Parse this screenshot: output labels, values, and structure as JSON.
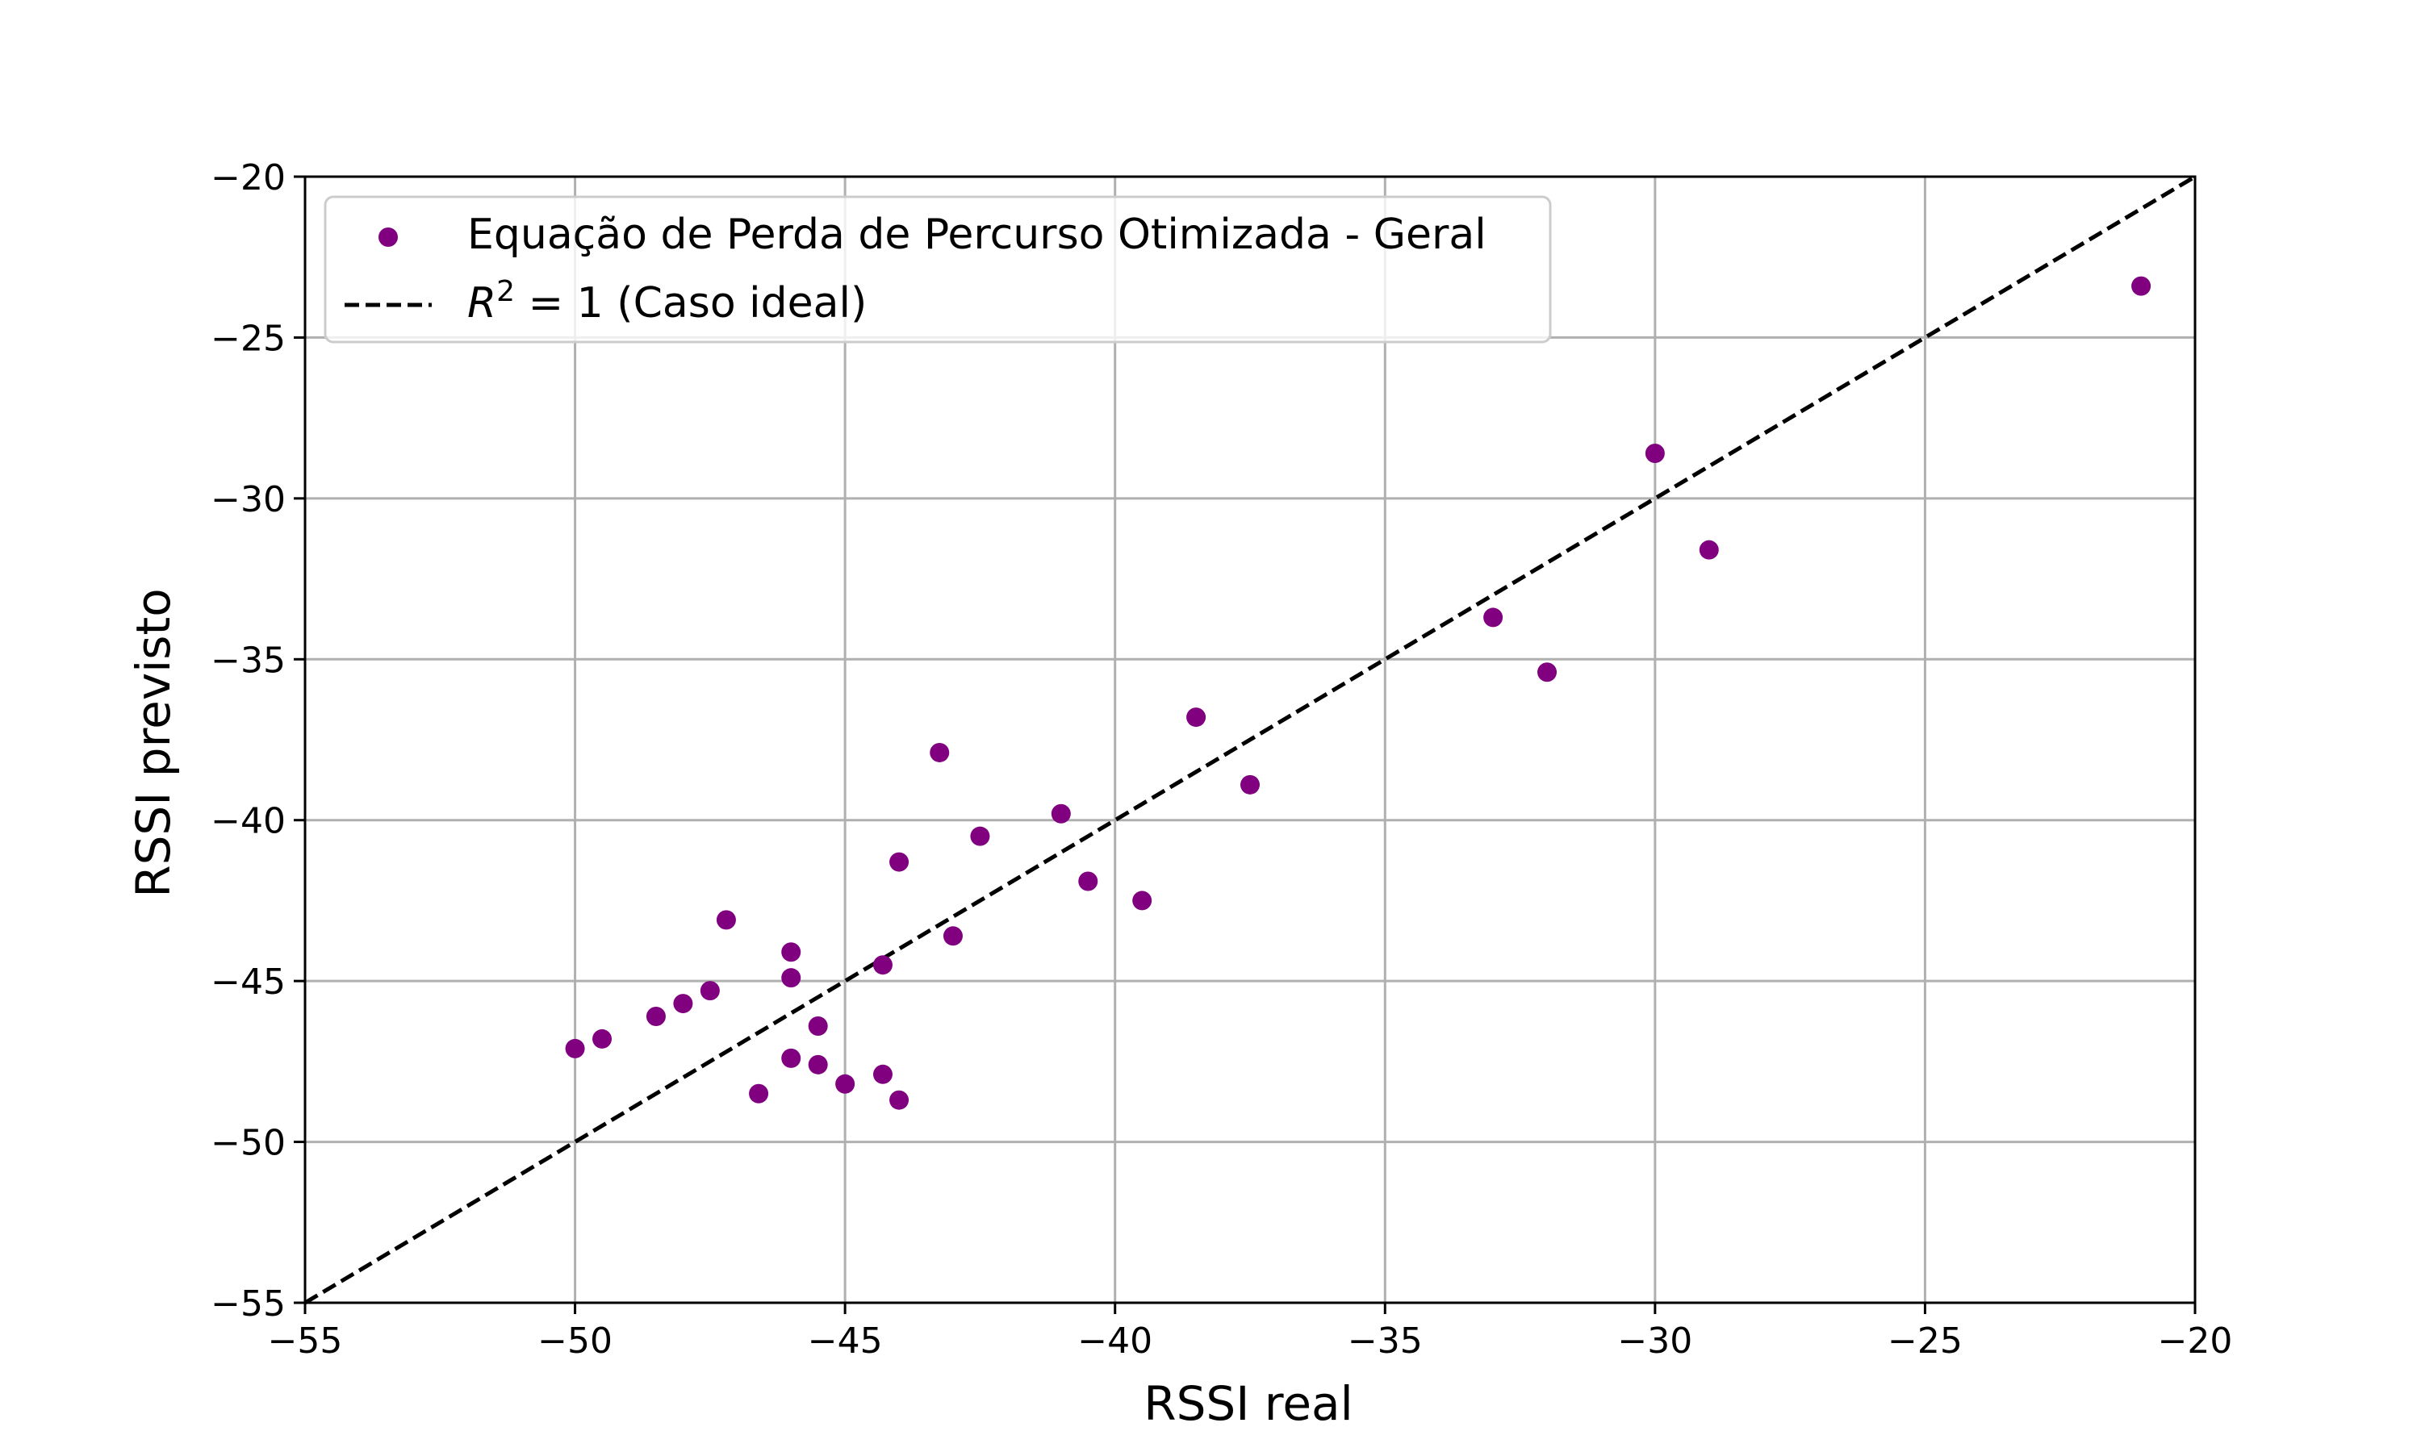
{
  "chart_data": {
    "type": "scatter",
    "title": "",
    "xlabel": "RSSI real",
    "ylabel": "RSSI previsto",
    "xlim": [
      -55,
      -20
    ],
    "ylim": [
      -55,
      -20
    ],
    "xticks": [
      -55,
      -50,
      -45,
      -40,
      -35,
      -30,
      -25,
      -20
    ],
    "yticks": [
      -55,
      -50,
      -45,
      -40,
      -35,
      -30,
      -25,
      -20
    ],
    "xtick_labels": [
      "−55",
      "−50",
      "−45",
      "−40",
      "−35",
      "−30",
      "−25",
      "−20"
    ],
    "ytick_labels": [
      "−55",
      "−50",
      "−45",
      "−40",
      "−35",
      "−30",
      "−25",
      "−20"
    ],
    "grid": true,
    "legend_position": "upper-left",
    "series": [
      {
        "name": "Equação de Perda de Percurso Otimizada - Geral",
        "kind": "scatter",
        "color": "#800080",
        "points": [
          [
            -50.0,
            -47.1
          ],
          [
            -49.5,
            -46.8
          ],
          [
            -48.5,
            -46.1
          ],
          [
            -48.0,
            -45.7
          ],
          [
            -47.5,
            -45.3
          ],
          [
            -47.2,
            -43.1
          ],
          [
            -46.6,
            -48.5
          ],
          [
            -46.0,
            -44.1
          ],
          [
            -46.0,
            -44.9
          ],
          [
            -46.0,
            -47.4
          ],
          [
            -45.5,
            -46.4
          ],
          [
            -45.5,
            -47.6
          ],
          [
            -45.0,
            -48.2
          ],
          [
            -44.3,
            -44.5
          ],
          [
            -44.3,
            -47.9
          ],
          [
            -44.0,
            -41.3
          ],
          [
            -44.0,
            -48.7
          ],
          [
            -43.25,
            -37.9
          ],
          [
            -43.0,
            -43.6
          ],
          [
            -42.5,
            -40.5
          ],
          [
            -41.0,
            -39.8
          ],
          [
            -40.5,
            -41.9
          ],
          [
            -39.5,
            -42.5
          ],
          [
            -38.5,
            -36.8
          ],
          [
            -37.5,
            -38.9
          ],
          [
            -33.0,
            -33.7
          ],
          [
            -32.0,
            -35.4
          ],
          [
            -30.0,
            -28.6
          ],
          [
            -29.0,
            -31.6
          ],
          [
            -21.0,
            -23.4
          ]
        ]
      },
      {
        "name": "R² = 1 (Caso ideal)",
        "kind": "line",
        "style": "dashed",
        "color": "#000000",
        "points": [
          [
            -55,
            -55
          ],
          [
            -20,
            -20
          ]
        ]
      }
    ]
  }
}
